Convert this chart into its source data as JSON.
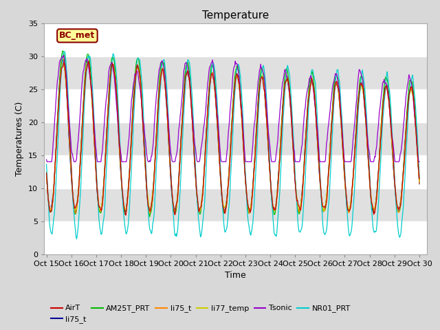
{
  "title": "Temperature",
  "xlabel": "Time",
  "ylabel": "Temperatures (C)",
  "ylim": [
    0,
    35
  ],
  "yticks": [
    0,
    5,
    10,
    15,
    20,
    25,
    30,
    35
  ],
  "xtick_labels": [
    "Oct 15",
    "Oct 16",
    "Oct 17",
    "Oct 18",
    "Oct 19",
    "Oct 20",
    "Oct 21",
    "Oct 22",
    "Oct 23",
    "Oct 24",
    "Oct 25",
    "Oct 26",
    "Oct 27",
    "Oct 28",
    "Oct 29",
    "Oct 30"
  ],
  "annotation_text": "BC_met",
  "annotation_bg": "#FFFF99",
  "annotation_border": "#8B0000",
  "series_colors": {
    "AirT": "#CC0000",
    "li75_t_blue": "#000099",
    "AM25T_PRT": "#00BB00",
    "li75_t_orange": "#FF8800",
    "li77_temp": "#CCCC00",
    "Tsonic": "#9900CC",
    "NR01_PRT": "#00CCCC"
  },
  "bg_outer": "#D8D8D8",
  "bg_plot": "#E0E0E0",
  "title_fontsize": 11,
  "axis_fontsize": 9,
  "tick_fontsize": 8
}
